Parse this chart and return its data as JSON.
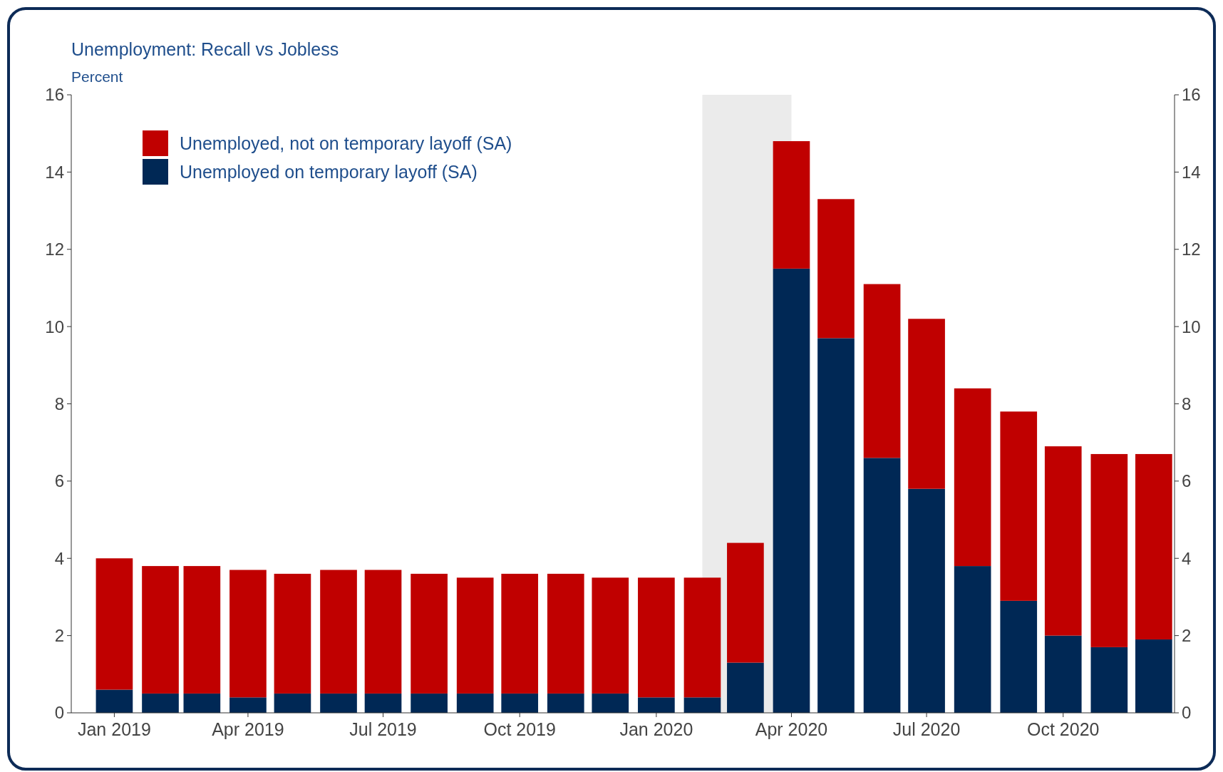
{
  "chart_data": {
    "type": "bar",
    "title": "Unemployment: Recall vs Jobless",
    "subtitle": "Percent",
    "stacked": true,
    "x": [
      "2019-01",
      "2019-02",
      "2019-03",
      "2019-04",
      "2019-05",
      "2019-06",
      "2019-07",
      "2019-08",
      "2019-09",
      "2019-10",
      "2019-11",
      "2019-12",
      "2020-01",
      "2020-02",
      "2020-03",
      "2020-04",
      "2020-05",
      "2020-06",
      "2020-07",
      "2020-08",
      "2020-09",
      "2020-10",
      "2020-11",
      "2020-12"
    ],
    "series": [
      {
        "name": "Unemployed on temporary layoff (SA)",
        "color": "#002855",
        "values": [
          0.6,
          0.5,
          0.5,
          0.4,
          0.5,
          0.5,
          0.5,
          0.5,
          0.5,
          0.5,
          0.5,
          0.5,
          0.4,
          0.4,
          1.3,
          11.5,
          9.7,
          6.6,
          5.8,
          3.8,
          2.9,
          2.0,
          1.7,
          1.9
        ]
      },
      {
        "name": "Unemployed, not on temporary layoff (SA)",
        "color": "#c00000",
        "values": [
          3.4,
          3.3,
          3.3,
          3.3,
          3.1,
          3.2,
          3.2,
          3.1,
          3.0,
          3.1,
          3.1,
          3.0,
          3.1,
          3.1,
          3.1,
          3.3,
          3.6,
          4.5,
          4.4,
          4.6,
          4.9,
          4.9,
          5.0,
          4.8
        ]
      }
    ],
    "xlim": [
      "2018-12-03",
      "2020-12-15"
    ],
    "xticks": [
      {
        "value": "2019-01",
        "label": "Jan 2019"
      },
      {
        "value": "2019-04",
        "label": "Apr 2019"
      },
      {
        "value": "2019-07",
        "label": "Jul 2019"
      },
      {
        "value": "2019-10",
        "label": "Oct 2019"
      },
      {
        "value": "2020-01",
        "label": "Jan 2020"
      },
      {
        "value": "2020-04",
        "label": "Apr 2020"
      },
      {
        "value": "2020-07",
        "label": "Jul 2020"
      },
      {
        "value": "2020-10",
        "label": "Oct 2020"
      }
    ],
    "ylim": [
      0,
      16
    ],
    "yticks": [
      0,
      2,
      4,
      6,
      8,
      10,
      12,
      14,
      16
    ],
    "y2lim": [
      0,
      16
    ],
    "y2ticks": [
      0,
      2,
      4,
      6,
      8,
      10,
      12,
      14,
      16
    ],
    "bands": [
      {
        "axis": "x",
        "from": "2020-02",
        "to": "2020-04",
        "color": "#ebebeb"
      }
    ],
    "legend": "top left",
    "grid": false
  }
}
